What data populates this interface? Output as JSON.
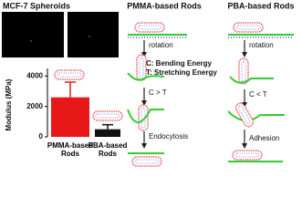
{
  "labels": {
    "spheroids": "MCF-7 Spheroids",
    "pmma_title": "PMMA-based Rods",
    "pba_title": "PBA-based Rods",
    "rotation_left": "rotation",
    "rotation_right": "rotation",
    "bending": "C: Bending Energy",
    "stretching": "T: Stretching Energy",
    "c_gt_t": "C > T",
    "c_lt_t": "C < T",
    "endocytosis": "Endocytosis",
    "adhesion": "Adhesion"
  },
  "chart_data": {
    "type": "bar",
    "y_label": "Modulus (MPa)",
    "categories": [
      "PMMA-based Rods",
      "PBA-based Rods"
    ],
    "values": [
      2600,
      500
    ],
    "errors": [
      1000,
      300
    ],
    "colors": [
      "#e81818",
      "#111111"
    ],
    "ylim": [
      0,
      4500
    ],
    "yticks": [
      0,
      2000,
      4000
    ]
  }
}
